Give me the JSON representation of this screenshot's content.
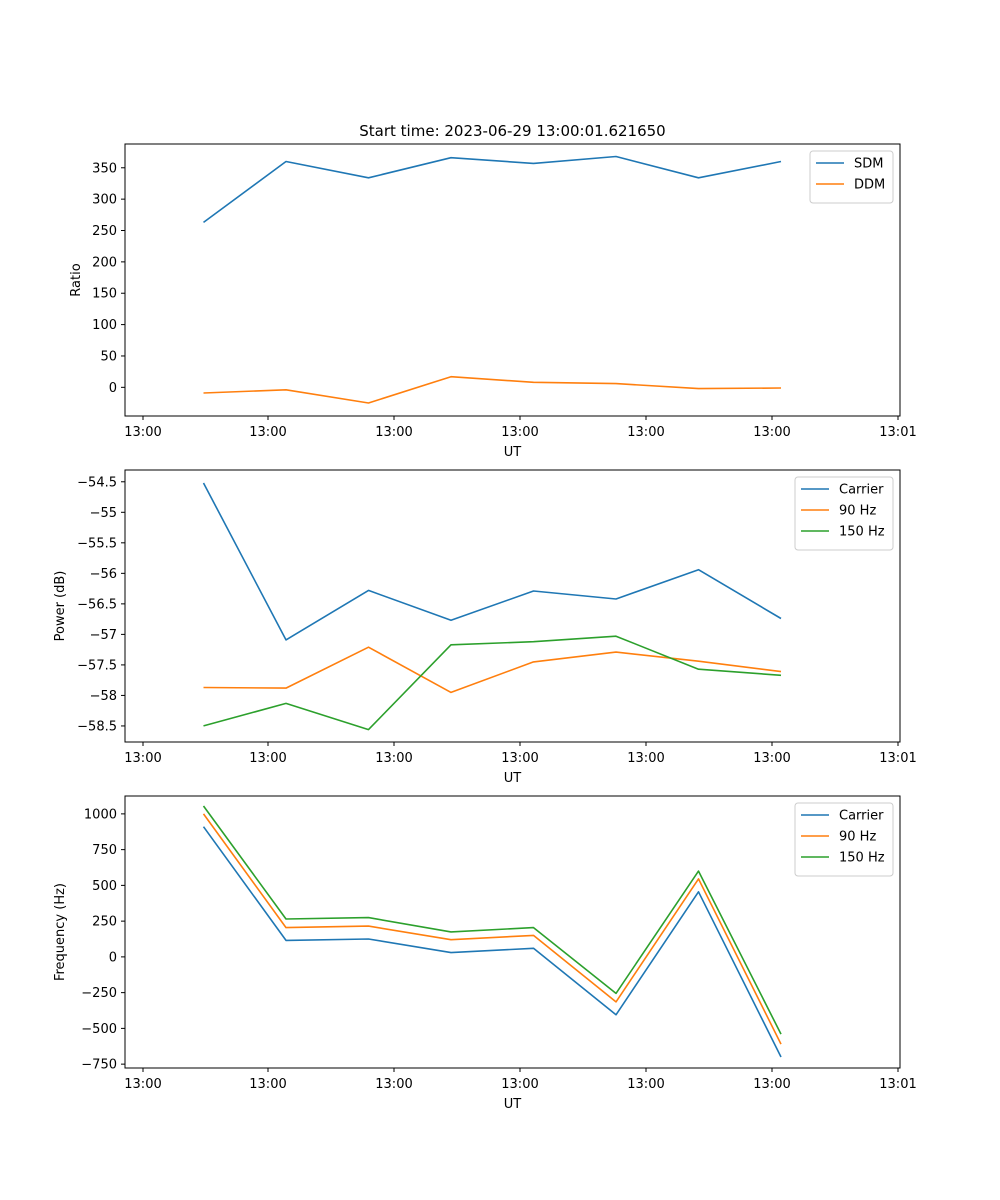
{
  "figure_title": "Start time: 2023-06-29 13:00:01.621650",
  "colors": {
    "blue": "#1f77b4",
    "orange": "#ff7f0e",
    "green": "#2ca02c"
  },
  "x_tick_labels": [
    "13:00",
    "13:00",
    "13:00",
    "13:00",
    "13:00",
    "13:00",
    "13:01"
  ],
  "chart_data": [
    {
      "type": "line",
      "xlabel": "UT",
      "ylabel": "Ratio",
      "ylim": [
        -45.7,
        387.9
      ],
      "yticks": [
        0,
        50,
        100,
        150,
        200,
        250,
        300,
        350
      ],
      "legend_position": "upper-right",
      "grid": false,
      "x": [
        1,
        2,
        3,
        4,
        5,
        6,
        7,
        8
      ],
      "series": [
        {
          "name": "SDM",
          "color": "#1f77b4",
          "values": [
            263,
            360,
            334,
            366,
            357,
            368,
            334,
            360
          ]
        },
        {
          "name": "DDM",
          "color": "#ff7f0e",
          "values": [
            -9,
            -4,
            -25,
            17,
            8,
            6,
            -2,
            -1
          ]
        }
      ]
    },
    {
      "type": "line",
      "xlabel": "UT",
      "ylabel": "Power (dB)",
      "ylim": [
        -58.763,
        -54.307
      ],
      "yticks": [
        -58.5,
        -58.0,
        -57.5,
        -57.0,
        -56.5,
        -56.0,
        -55.5,
        -55.0,
        -54.5
      ],
      "legend_position": "upper-right",
      "grid": false,
      "x": [
        1,
        2,
        3,
        4,
        5,
        6,
        7,
        8
      ],
      "series": [
        {
          "name": "Carrier",
          "color": "#1f77b4",
          "values": [
            -54.52,
            -57.09,
            -56.28,
            -56.77,
            -56.29,
            -56.42,
            -55.94,
            -56.74
          ]
        },
        {
          "name": "90 Hz",
          "color": "#ff7f0e",
          "values": [
            -57.87,
            -57.88,
            -57.21,
            -57.95,
            -57.45,
            -57.29,
            -57.44,
            -57.61
          ]
        },
        {
          "name": "150 Hz",
          "color": "#2ca02c",
          "values": [
            -58.5,
            -58.13,
            -58.56,
            -57.17,
            -57.12,
            -57.03,
            -57.57,
            -57.67
          ]
        }
      ]
    },
    {
      "type": "line",
      "xlabel": "UT",
      "ylabel": "Frequency (Hz)",
      "ylim": [
        -777,
        1125
      ],
      "yticks": [
        -750,
        -500,
        -250,
        0,
        250,
        500,
        750,
        1000
      ],
      "legend_position": "upper-right",
      "grid": false,
      "x": [
        1,
        2,
        3,
        4,
        5,
        6,
        7,
        8
      ],
      "series": [
        {
          "name": "Carrier",
          "color": "#1f77b4",
          "values": [
            910,
            115,
            125,
            30,
            60,
            -405,
            455,
            -700
          ]
        },
        {
          "name": "90 Hz",
          "color": "#ff7f0e",
          "values": [
            1000,
            205,
            215,
            120,
            150,
            -315,
            545,
            -610
          ]
        },
        {
          "name": "150 Hz",
          "color": "#2ca02c",
          "values": [
            1055,
            265,
            275,
            175,
            205,
            -255,
            600,
            -540
          ]
        }
      ]
    }
  ]
}
